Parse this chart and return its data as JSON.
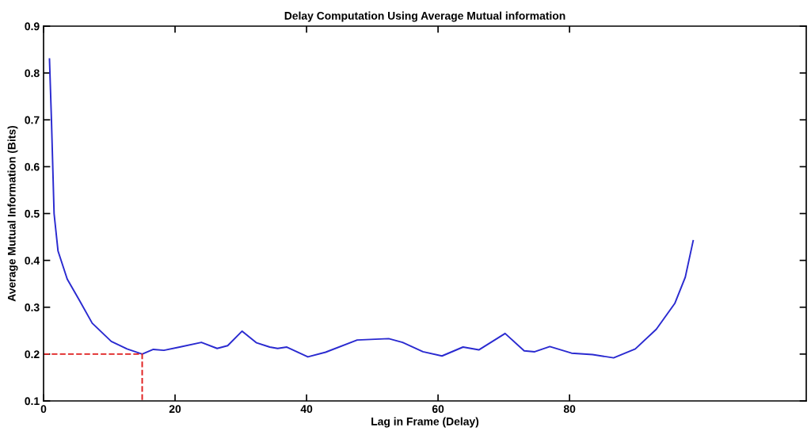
{
  "chart_data": {
    "type": "line",
    "title": "Delay Computation Using Average Mutual information",
    "xlabel": "Lag in Frame (Delay)",
    "ylabel": "Average Mutual Information (Bits)",
    "xlim": [
      0,
      116
    ],
    "xticks": [
      0,
      20,
      40,
      60,
      80
    ],
    "ylim": [
      0.1,
      0.9
    ],
    "yticks": [
      0.1,
      0.2,
      0.3,
      0.4,
      0.5,
      0.6,
      0.7,
      0.8,
      0.9
    ],
    "grid": false,
    "legend": false,
    "series": [
      {
        "color": "#2a2ad0",
        "line_style": "solid",
        "x": [
          0.9,
          1.2,
          1.6,
          2.2,
          3.6,
          5.4,
          7.4,
          10.3,
          12.7,
          15,
          16.7,
          18.3,
          20.7,
          24,
          26.4,
          28,
          30.2,
          32.4,
          34.4,
          35.6,
          37,
          40.2,
          42.9,
          47.7,
          52.5,
          54.6,
          57.7,
          60.6,
          63.8,
          66.2,
          70.2,
          73.1,
          74.7,
          77,
          80.3,
          83.5,
          86.7,
          90,
          93.2,
          96,
          97.6,
          98.8
        ],
        "values": [
          0.83,
          0.7,
          0.5,
          0.42,
          0.36,
          0.316,
          0.266,
          0.227,
          0.211,
          0.2,
          0.21,
          0.208,
          0.215,
          0.225,
          0.212,
          0.218,
          0.249,
          0.224,
          0.215,
          0.212,
          0.215,
          0.194,
          0.204,
          0.23,
          0.233,
          0.225,
          0.205,
          0.196,
          0.215,
          0.209,
          0.244,
          0.207,
          0.205,
          0.216,
          0.202,
          0.199,
          0.192,
          0.211,
          0.253,
          0.308,
          0.364,
          0.442
        ]
      },
      {
        "color": "#e02020",
        "line_style": "dashed",
        "x": [
          0,
          15,
          15
        ],
        "values": [
          0.2,
          0.2,
          0.1
        ]
      }
    ]
  }
}
